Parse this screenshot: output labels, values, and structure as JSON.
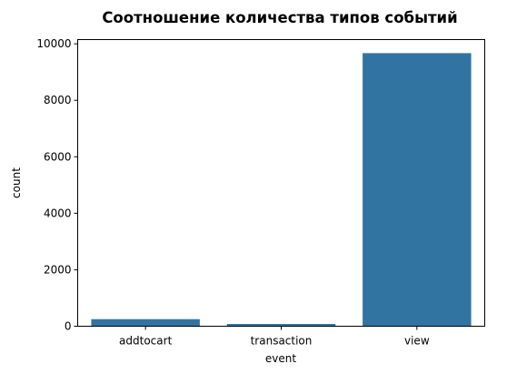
{
  "chart_data": {
    "type": "bar",
    "title": "Соотношение количества типов событий",
    "xlabel": "event",
    "ylabel": "count",
    "categories": [
      "addtocart",
      "transaction",
      "view"
    ],
    "values": [
      250,
      80,
      9670
    ],
    "ylim": [
      0,
      10150
    ],
    "yticks": [
      0,
      2000,
      4000,
      6000,
      8000,
      10000
    ],
    "grid": false,
    "legend": "none",
    "bar_color": "#3274a1"
  }
}
